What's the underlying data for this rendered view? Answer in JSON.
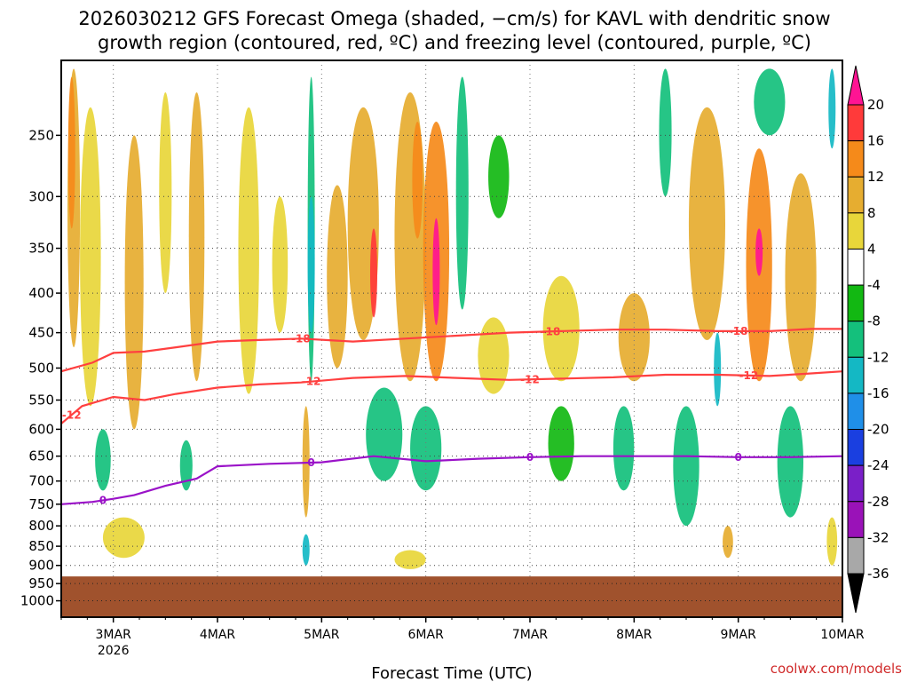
{
  "chart_data": {
    "type": "heatmap",
    "title_line1": "2026030212 GFS Forecast Omega (shaded, −cm/s) for KAVL with dendritic snow",
    "title_line2": "growth region (contoured, red, ºC) and freezing level (contoured, purple, ºC)",
    "xlabel": "Forecast Time (UTC)",
    "credit": "coolwx.com/models",
    "x_ticks": [
      {
        "label": "3MAR",
        "sub": "2026",
        "day": 3
      },
      {
        "label": "4MAR",
        "sub": "",
        "day": 4
      },
      {
        "label": "5MAR",
        "sub": "",
        "day": 5
      },
      {
        "label": "6MAR",
        "sub": "",
        "day": 6
      },
      {
        "label": "7MAR",
        "sub": "",
        "day": 7
      },
      {
        "label": "8MAR",
        "sub": "",
        "day": 8
      },
      {
        "label": "9MAR",
        "sub": "",
        "day": 9
      },
      {
        "label": "10MAR",
        "sub": "",
        "day": 10
      }
    ],
    "xlim": [
      2.5,
      10.0
    ],
    "y_ticks": [
      "250",
      "300",
      "350",
      "400",
      "450",
      "500",
      "550",
      "600",
      "650",
      "700",
      "750",
      "800",
      "850",
      "900",
      "950",
      "1000"
    ],
    "y_log_scale": true,
    "ylim": [
      200,
      1050
    ],
    "ground_level_hPa": 930,
    "colorbar": {
      "labels": [
        "20",
        "16",
        "12",
        "8",
        "4",
        "-4",
        "-8",
        "-12",
        "-16",
        "-20",
        "-24",
        "-28",
        "-32",
        "-36"
      ],
      "colors": [
        "#ff1493",
        "#ff3a3a",
        "#f58a1a",
        "#e6ad30",
        "#e8d63a",
        "#ffffff",
        "#12b812",
        "#14c07c",
        "#14b8c4",
        "#1f8fe8",
        "#1a3fe0",
        "#7a1fc8",
        "#9a12b8",
        "#a8a8a8",
        "#000000"
      ]
    },
    "omega_regions": [
      {
        "day": 2.62,
        "p_top": 205,
        "p_bot": 470,
        "w": 0.12,
        "v": 8
      },
      {
        "day": 2.6,
        "p_top": 210,
        "p_bot": 330,
        "w": 0.05,
        "v": 14
      },
      {
        "day": 2.78,
        "p_top": 230,
        "p_bot": 560,
        "w": 0.2,
        "v": 6
      },
      {
        "day": 3.2,
        "p_top": 250,
        "p_bot": 600,
        "w": 0.18,
        "v": 8
      },
      {
        "day": 3.5,
        "p_top": 220,
        "p_bot": 400,
        "w": 0.12,
        "v": 6
      },
      {
        "day": 3.8,
        "p_top": 220,
        "p_bot": 520,
        "w": 0.15,
        "v": 8
      },
      {
        "day": 4.3,
        "p_top": 230,
        "p_bot": 540,
        "w": 0.2,
        "v": 6
      },
      {
        "day": 4.6,
        "p_top": 300,
        "p_bot": 450,
        "w": 0.15,
        "v": 6
      },
      {
        "day": 5.15,
        "p_top": 290,
        "p_bot": 500,
        "w": 0.2,
        "v": 8
      },
      {
        "day": 5.4,
        "p_top": 230,
        "p_bot": 460,
        "w": 0.3,
        "v": 10
      },
      {
        "day": 5.5,
        "p_top": 330,
        "p_bot": 430,
        "w": 0.06,
        "v": 16
      },
      {
        "day": 5.85,
        "p_top": 220,
        "p_bot": 520,
        "w": 0.3,
        "v": 10
      },
      {
        "day": 5.92,
        "p_top": 240,
        "p_bot": 340,
        "w": 0.1,
        "v": 14
      },
      {
        "day": 6.1,
        "p_top": 240,
        "p_bot": 520,
        "w": 0.25,
        "v": 12
      },
      {
        "day": 6.1,
        "p_top": 320,
        "p_bot": 440,
        "w": 0.06,
        "v": 20
      },
      {
        "day": 6.65,
        "p_top": 430,
        "p_bot": 540,
        "w": 0.3,
        "v": 5
      },
      {
        "day": 7.3,
        "p_top": 380,
        "p_bot": 520,
        "w": 0.35,
        "v": 6
      },
      {
        "day": 8.0,
        "p_top": 400,
        "p_bot": 520,
        "w": 0.3,
        "v": 8
      },
      {
        "day": 8.7,
        "p_top": 230,
        "p_bot": 460,
        "w": 0.35,
        "v": 10
      },
      {
        "day": 9.2,
        "p_top": 260,
        "p_bot": 520,
        "w": 0.25,
        "v": 12
      },
      {
        "day": 9.2,
        "p_top": 330,
        "p_bot": 380,
        "w": 0.05,
        "v": 20
      },
      {
        "day": 9.6,
        "p_top": 280,
        "p_bot": 520,
        "w": 0.3,
        "v": 8
      },
      {
        "day": 5.85,
        "p_top": 860,
        "p_bot": 910,
        "w": 0.3,
        "v": 5
      },
      {
        "day": 3.1,
        "p_top": 780,
        "p_bot": 880,
        "w": 0.4,
        "v": 5
      },
      {
        "day": 4.85,
        "p_top": 560,
        "p_bot": 780,
        "w": 0.06,
        "v": 8
      },
      {
        "day": 8.9,
        "p_top": 800,
        "p_bot": 880,
        "w": 0.1,
        "v": 8
      },
      {
        "day": 9.9,
        "p_top": 780,
        "p_bot": 900,
        "w": 0.1,
        "v": 6
      },
      {
        "day": 4.9,
        "p_top": 210,
        "p_bot": 520,
        "w": 0.06,
        "v": -8
      },
      {
        "day": 4.9,
        "p_top": 300,
        "p_bot": 450,
        "w": 0.03,
        "v": -14
      },
      {
        "day": 4.85,
        "p_top": 820,
        "p_bot": 900,
        "w": 0.06,
        "v": -12
      },
      {
        "day": 5.6,
        "p_top": 530,
        "p_bot": 700,
        "w": 0.35,
        "v": -10
      },
      {
        "day": 6.0,
        "p_top": 560,
        "p_bot": 720,
        "w": 0.3,
        "v": -9
      },
      {
        "day": 6.35,
        "p_top": 210,
        "p_bot": 420,
        "w": 0.12,
        "v": -8
      },
      {
        "day": 6.7,
        "p_top": 250,
        "p_bot": 320,
        "w": 0.2,
        "v": -7
      },
      {
        "day": 7.3,
        "p_top": 560,
        "p_bot": 700,
        "w": 0.25,
        "v": -7
      },
      {
        "day": 7.9,
        "p_top": 560,
        "p_bot": 720,
        "w": 0.2,
        "v": -8
      },
      {
        "day": 8.3,
        "p_top": 205,
        "p_bot": 300,
        "w": 0.12,
        "v": -8
      },
      {
        "day": 8.5,
        "p_top": 560,
        "p_bot": 800,
        "w": 0.25,
        "v": -8
      },
      {
        "day": 8.8,
        "p_top": 450,
        "p_bot": 560,
        "w": 0.06,
        "v": -14
      },
      {
        "day": 9.3,
        "p_top": 205,
        "p_bot": 250,
        "w": 0.3,
        "v": -8
      },
      {
        "day": 9.5,
        "p_top": 560,
        "p_bot": 780,
        "w": 0.25,
        "v": -8
      },
      {
        "day": 9.9,
        "p_top": 205,
        "p_bot": 260,
        "w": 0.06,
        "v": -14
      },
      {
        "day": 2.9,
        "p_top": 600,
        "p_bot": 720,
        "w": 0.15,
        "v": -10
      },
      {
        "day": 3.7,
        "p_top": 620,
        "p_bot": 720,
        "w": 0.12,
        "v": -8
      }
    ],
    "contours": [
      {
        "value": -18,
        "label": "-18",
        "color": "#ff4040",
        "points": [
          [
            2.5,
            505
          ],
          [
            2.8,
            492
          ],
          [
            3.0,
            478
          ],
          [
            3.3,
            476
          ],
          [
            3.6,
            470
          ],
          [
            4.0,
            462
          ],
          [
            4.4,
            460
          ],
          [
            4.8,
            458
          ],
          [
            5.3,
            462
          ],
          [
            5.8,
            458
          ],
          [
            6.3,
            454
          ],
          [
            6.8,
            450
          ],
          [
            7.3,
            448
          ],
          [
            7.8,
            446
          ],
          [
            8.3,
            446
          ],
          [
            8.8,
            448
          ],
          [
            9.3,
            448
          ],
          [
            9.7,
            445
          ],
          [
            10.0,
            445
          ]
        ],
        "label_days": [
          4.8,
          7.2,
          9.0
        ]
      },
      {
        "value": -12,
        "label": "-12",
        "color": "#ff4040",
        "points": [
          [
            2.5,
            590
          ],
          [
            2.7,
            560
          ],
          [
            3.0,
            545
          ],
          [
            3.3,
            550
          ],
          [
            3.6,
            540
          ],
          [
            4.0,
            530
          ],
          [
            4.4,
            525
          ],
          [
            4.8,
            522
          ],
          [
            5.3,
            515
          ],
          [
            5.8,
            512
          ],
          [
            6.3,
            515
          ],
          [
            6.8,
            518
          ],
          [
            7.3,
            516
          ],
          [
            7.8,
            514
          ],
          [
            8.3,
            510
          ],
          [
            8.8,
            510
          ],
          [
            9.3,
            512
          ],
          [
            9.7,
            508
          ],
          [
            10.0,
            505
          ]
        ],
        "label_days": [
          2.6,
          4.9,
          7.0,
          9.1
        ]
      },
      {
        "value": 0,
        "label": "0",
        "color": "#9a12c8",
        "points": [
          [
            2.5,
            750
          ],
          [
            2.8,
            745
          ],
          [
            3.0,
            738
          ],
          [
            3.2,
            730
          ],
          [
            3.5,
            710
          ],
          [
            3.8,
            695
          ],
          [
            4.0,
            670
          ],
          [
            4.5,
            665
          ],
          [
            5.0,
            662
          ],
          [
            5.5,
            650
          ],
          [
            6.0,
            660
          ],
          [
            6.5,
            655
          ],
          [
            7.0,
            652
          ],
          [
            7.5,
            650
          ],
          [
            8.0,
            650
          ],
          [
            8.5,
            650
          ],
          [
            9.0,
            652
          ],
          [
            9.5,
            652
          ],
          [
            10.0,
            650
          ]
        ],
        "label_days": [
          2.9,
          4.9,
          7.0,
          9.0
        ]
      }
    ]
  }
}
